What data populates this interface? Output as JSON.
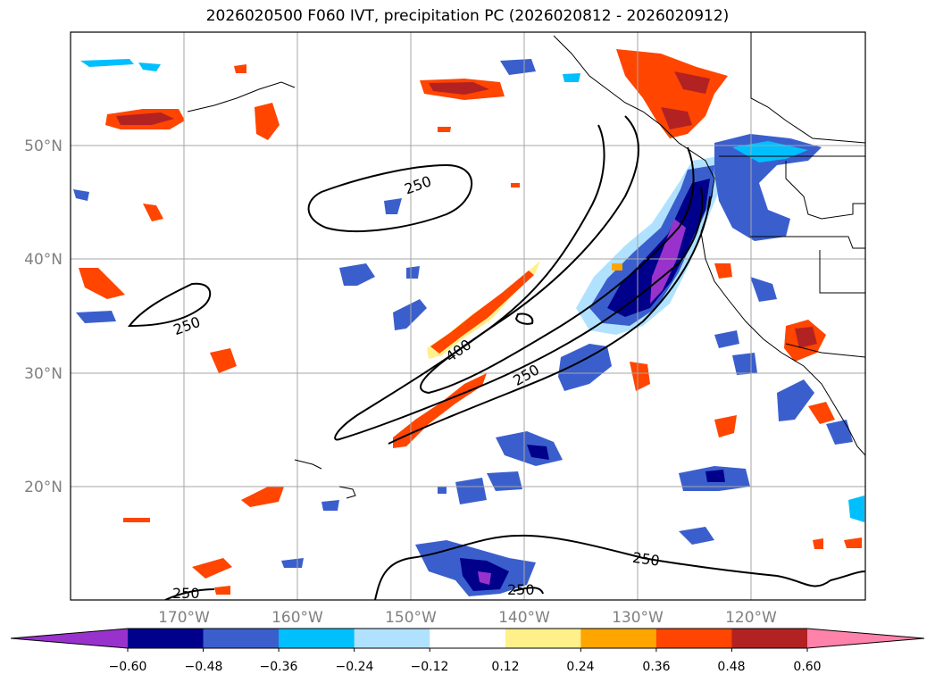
{
  "title": "2026020500 F060 IVT, precipitation PC (2026020812 - 2026020912)",
  "map": {
    "lat_labels": [
      "50°N",
      "40°N",
      "30°N",
      "20°N"
    ],
    "lon_labels": [
      "170°W",
      "160°W",
      "150°W",
      "140°W",
      "130°W",
      "120°W"
    ],
    "gridlines": true
  },
  "contours": {
    "labels": [
      "250",
      "250",
      "250",
      "400",
      "250",
      "250",
      "250"
    ],
    "color": "#000000"
  },
  "colorbar": {
    "colors": [
      "#9932cc",
      "#00008b",
      "#3a5fcd",
      "#00bfff",
      "#b0e2ff",
      "#ffffff",
      "#fff08a",
      "#ffa500",
      "#ff4500",
      "#b22222",
      "#ff82ab"
    ],
    "tick_labels": [
      "−0.60",
      "−0.48",
      "−0.36",
      "−0.24",
      "−0.12",
      "0.12",
      "0.24",
      "0.36",
      "0.48",
      "0.60"
    ],
    "extend": "both"
  }
}
